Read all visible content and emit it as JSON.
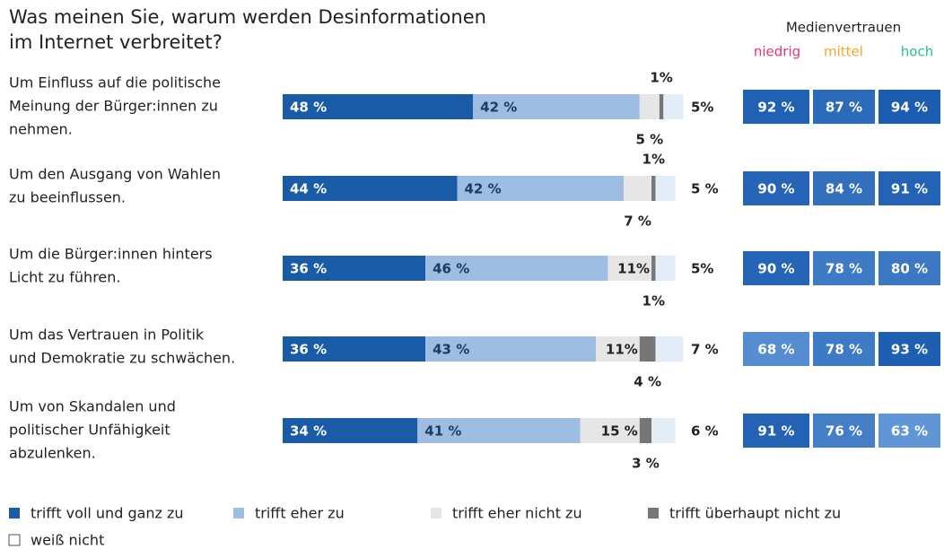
{
  "chart_data": {
    "type": "stacked-bar",
    "title": [
      "Was meinen Sie, warum werden Desinformationen",
      "im Internet verbreitet?"
    ],
    "categories": [
      [
        "Um Einfluss auf die politische",
        "Meinung der Bürger:innen zu",
        "nehmen."
      ],
      [
        "Um den Ausgang von Wahlen",
        "zu beeinflussen."
      ],
      [
        "Um die Bürger:innen hinters",
        "Licht zu führen."
      ],
      [
        "Um das Vertrauen in Politik",
        "und Demokratie zu schwächen."
      ],
      [
        "Um von Skandalen und",
        "politischer Unfähigkeit",
        "abzulenken."
      ]
    ],
    "series": [
      {
        "name": "trifft voll und ganz zu",
        "color": "#1a5ba8",
        "values": [
          48,
          44,
          36,
          36,
          34
        ],
        "value_labels": [
          "48 %",
          "44 %",
          "36 %",
          "36 %",
          "34 %"
        ]
      },
      {
        "name": "trifft eher zu",
        "color": "#9dbde2",
        "values": [
          42,
          42,
          46,
          43,
          41
        ],
        "value_labels": [
          "42 %",
          "42 %",
          "46 %",
          "43 %",
          "41 %"
        ]
      },
      {
        "name": "trifft eher nicht zu",
        "color": "#e6e6e6",
        "values": [
          5,
          7,
          11,
          11,
          15
        ],
        "value_labels": [
          "5 %",
          "7 %",
          "11%",
          "11%",
          "15 %"
        ]
      },
      {
        "name": "trifft überhaupt nicht zu",
        "color": "#767676",
        "values": [
          1,
          1,
          1,
          4,
          3
        ],
        "value_labels": [
          "1%",
          "1%",
          "1%",
          "4 %",
          "3 %"
        ]
      },
      {
        "name": "weiß nicht",
        "color": "#e3edf8",
        "values": [
          5,
          5,
          5,
          7,
          6
        ],
        "value_labels": [
          "5%",
          "5 %",
          "5%",
          "7 %",
          "6 %"
        ]
      }
    ],
    "trust": {
      "title": "Medienvertrauen",
      "columns": [
        {
          "name": "niedrig",
          "color": "#e8336e"
        },
        {
          "name": "mittel",
          "color": "#f5a623"
        },
        {
          "name": "hoch",
          "color": "#1fc48b"
        }
      ],
      "rows": [
        [
          92,
          87,
          94
        ],
        [
          90,
          84,
          91
        ],
        [
          90,
          78,
          80
        ],
        [
          68,
          78,
          93
        ],
        [
          91,
          76,
          63
        ]
      ],
      "value_labels": [
        [
          "92 %",
          "87 %",
          "94 %"
        ],
        [
          "90 %",
          "84 %",
          "91 %"
        ],
        [
          "90 %",
          "78 %",
          "80 %"
        ],
        [
          "68 %",
          "78 %",
          "93 %"
        ],
        [
          "91 %",
          "76 %",
          "63 %"
        ]
      ]
    }
  }
}
